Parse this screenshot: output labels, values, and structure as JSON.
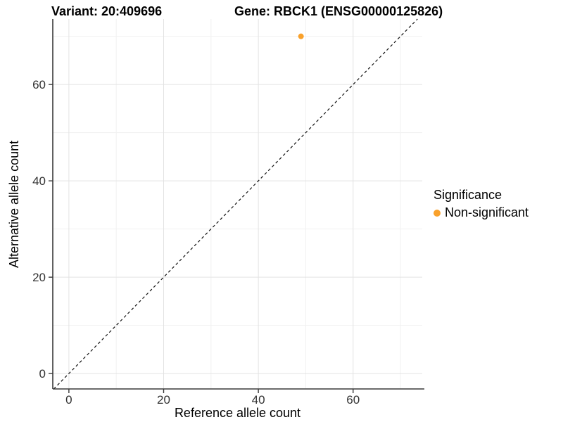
{
  "plot": {
    "title_variant": "Variant: 20:409696",
    "title_gene": "Gene: RBCK1 (ENSG00000125826)"
  },
  "legend": {
    "title": "Significance",
    "items": [
      {
        "label": "Non-significant",
        "color": "#F9A12B",
        "marker": "circle"
      }
    ]
  },
  "chart_data": {
    "type": "scatter",
    "title": "Variant: 20:409696 — Gene: RBCK1 (ENSG00000125826)",
    "xlabel": "Reference allele count",
    "ylabel": "Alternative allele count",
    "x_ticks": [
      0,
      20,
      40,
      60
    ],
    "y_ticks": [
      0,
      20,
      40,
      60
    ],
    "x_minor_ticks": [
      10,
      30,
      50,
      70
    ],
    "y_minor_ticks": [
      10,
      30,
      50,
      70
    ],
    "xlim": [
      -3.4,
      74.6
    ],
    "ylim": [
      -3.2,
      73.6
    ],
    "grid": "on",
    "legend_position": "right",
    "series": [
      {
        "name": "Non-significant",
        "color": "#F9A12B",
        "points": [
          {
            "x": 49,
            "y": 70
          }
        ]
      }
    ],
    "reference_line": {
      "kind": "identity",
      "slope": 1,
      "intercept": 0,
      "style": "dashed",
      "color": "#111111"
    }
  },
  "colors": {
    "background": "#FFFFFF",
    "grid_major": "#E3E3E3",
    "grid_minor": "#F1F1F1",
    "axis_line": "#3A3A3A",
    "tick_text": "#333333",
    "point": "#F9A12B"
  }
}
